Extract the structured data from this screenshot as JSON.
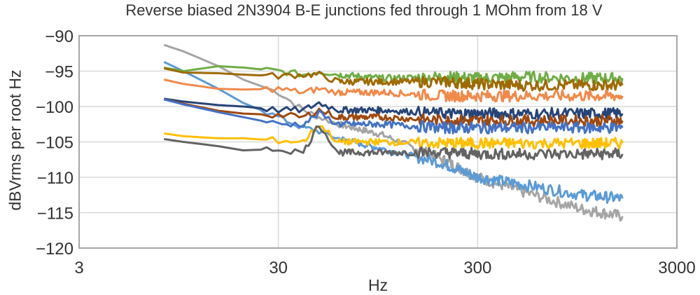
{
  "chart_data": {
    "type": "line",
    "title": "Reverse biased 2N3904 B-E junctions fed through 1 MOhm from 18 V",
    "xlabel": "Hz",
    "ylabel": "dBVrms per root Hz",
    "xscale": "log",
    "xlim": [
      3,
      3000
    ],
    "ylim": [
      -120,
      -90
    ],
    "xticks": [
      3,
      30,
      300,
      3000
    ],
    "xtick_labels": [
      "3",
      "30",
      "300",
      "3000"
    ],
    "yticks": [
      -90,
      -95,
      -100,
      -105,
      -110,
      -115,
      -120
    ],
    "ytick_labels": [
      "−90",
      "−95",
      "−100",
      "−105",
      "−110",
      "−115",
      "−120"
    ],
    "grid": true,
    "legend": "none",
    "x": [
      8,
      10,
      15,
      20,
      30,
      40,
      48,
      60,
      100,
      200,
      300,
      500,
      1000,
      1600
    ],
    "series": [
      {
        "name": "series-light-gray",
        "color": "#A5A5A5",
        "values": [
          -91.3,
          -92.2,
          -94.3,
          -96.2,
          -98.0,
          -100.5,
          -101.5,
          -102.5,
          -104.0,
          -107.5,
          -110.0,
          -112.0,
          -114.5,
          -115.5
        ]
      },
      {
        "name": "series-light-blue",
        "color": "#5B9BD5",
        "values": [
          -93.7,
          -95.0,
          -97.5,
          -99.5,
          -101.5,
          -103.0,
          -103.5,
          -104.5,
          -106.0,
          -108.0,
          -110.0,
          -111.0,
          -112.5,
          -113.0
        ]
      },
      {
        "name": "series-green",
        "color": "#70AD47",
        "values": [
          -94.5,
          -95.0,
          -94.3,
          -94.5,
          -95.0,
          -95.5,
          -95.0,
          -95.5,
          -96.0,
          -95.8,
          -96.0,
          -95.8,
          -96.0,
          -96.0
        ]
      },
      {
        "name": "series-olive",
        "color": "#9E6A03",
        "values": [
          -94.6,
          -95.2,
          -95.3,
          -95.5,
          -95.7,
          -95.5,
          -95.5,
          -96.5,
          -96.5,
          -96.5,
          -96.8,
          -97.0,
          -97.0,
          -97.0
        ]
      },
      {
        "name": "series-orange",
        "color": "#F08A4B",
        "values": [
          -96.2,
          -96.8,
          -97.5,
          -97.6,
          -97.5,
          -98.0,
          -97.5,
          -98.0,
          -98.0,
          -98.5,
          -98.5,
          -98.5,
          -98.5,
          -98.5
        ]
      },
      {
        "name": "series-navy",
        "color": "#264478",
        "values": [
          -98.9,
          -99.3,
          -99.8,
          -100.0,
          -100.5,
          -100.5,
          -99.5,
          -100.5,
          -100.5,
          -101.0,
          -101.0,
          -101.0,
          -101.0,
          -101.0
        ]
      },
      {
        "name": "series-brown",
        "color": "#9E480E",
        "values": [
          -99.0,
          -99.6,
          -100.6,
          -101.0,
          -101.2,
          -101.5,
          -100.5,
          -101.5,
          -101.5,
          -102.0,
          -102.0,
          -102.0,
          -102.0,
          -102.0
        ]
      },
      {
        "name": "series-medium-blue",
        "color": "#4472C4",
        "values": [
          -99.0,
          -99.7,
          -100.8,
          -101.5,
          -102.5,
          -102.5,
          -101.0,
          -102.5,
          -102.5,
          -103.0,
          -103.0,
          -103.0,
          -103.0,
          -103.0
        ]
      },
      {
        "name": "series-gold",
        "color": "#FFC000",
        "values": [
          -103.8,
          -104.2,
          -104.5,
          -104.5,
          -104.8,
          -105.0,
          -102.5,
          -105.0,
          -105.0,
          -105.2,
          -105.2,
          -105.2,
          -105.2,
          -105.2
        ]
      },
      {
        "name": "series-dark-gray",
        "color": "#636363",
        "values": [
          -104.6,
          -105.0,
          -105.6,
          -106.2,
          -106.0,
          -106.5,
          -102.5,
          -106.5,
          -106.5,
          -106.5,
          -106.7,
          -106.7,
          -106.7,
          -106.7
        ]
      }
    ],
    "annotations": []
  }
}
